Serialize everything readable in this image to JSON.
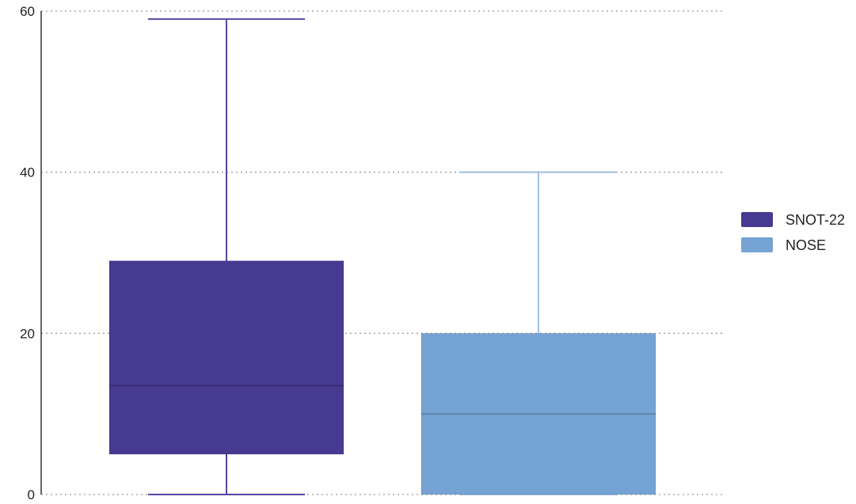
{
  "chart_data": {
    "type": "box",
    "ylim": [
      0,
      60
    ],
    "yticks": [
      0,
      20,
      40,
      60
    ],
    "grid": true,
    "legend_position": "right",
    "series": [
      {
        "name": "SNOT-22",
        "color": "#473a91",
        "whisker_color": "#5447a1",
        "min": 0,
        "q1": 5,
        "median": 13.5,
        "q3": 29,
        "max": 59
      },
      {
        "name": "NOSE",
        "color": "#75a3d3",
        "whisker_color": "#9dbfe2",
        "min": 0,
        "q1": 0,
        "median": 10,
        "q3": 20,
        "max": 40
      }
    ]
  }
}
